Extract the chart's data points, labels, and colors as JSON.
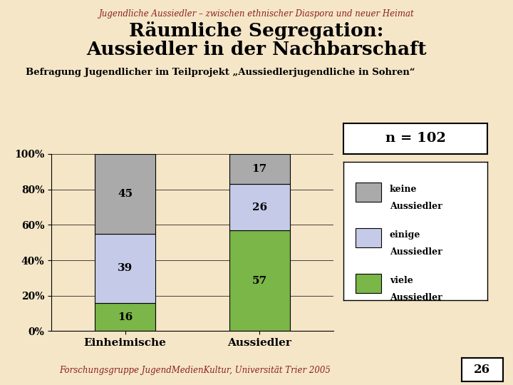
{
  "title_line1": "Räumliche Segregation:",
  "title_line2": "Aussiedler in der Nachbarschaft",
  "subtitle_top": "Jugendliche Aussiedler – zwischen ethnischer Diaspora und neuer Heimat",
  "subtitle_below": "Befragung Jugendlicher im Teilprojekt „Aussiedlerjugendliche in Sohren“",
  "footer": "Forschungsgruppe JugendMedienKultur, Universität Trier 2005",
  "page_number": "26",
  "n_label": "n = 102",
  "categories": [
    "Einheimische",
    "Aussiedler"
  ],
  "series": [
    {
      "label": "viele Aussiedler",
      "values": [
        16,
        57
      ],
      "color": "#7ab648"
    },
    {
      "label": "einige Aussiedler",
      "values": [
        39,
        26
      ],
      "color": "#c5cae9"
    },
    {
      "label": "keine Aussiedler",
      "values": [
        45,
        17
      ],
      "color": "#aaaaaa"
    }
  ],
  "ylim": [
    0,
    100
  ],
  "yticks": [
    0,
    20,
    40,
    60,
    80,
    100
  ],
  "ytick_labels": [
    "0%",
    "20%",
    "40%",
    "60%",
    "80%",
    "100%"
  ],
  "background_color": "#f5e6c8",
  "title_color": "#000000",
  "subtitle_top_color": "#8b2020",
  "bar_width": 0.45
}
